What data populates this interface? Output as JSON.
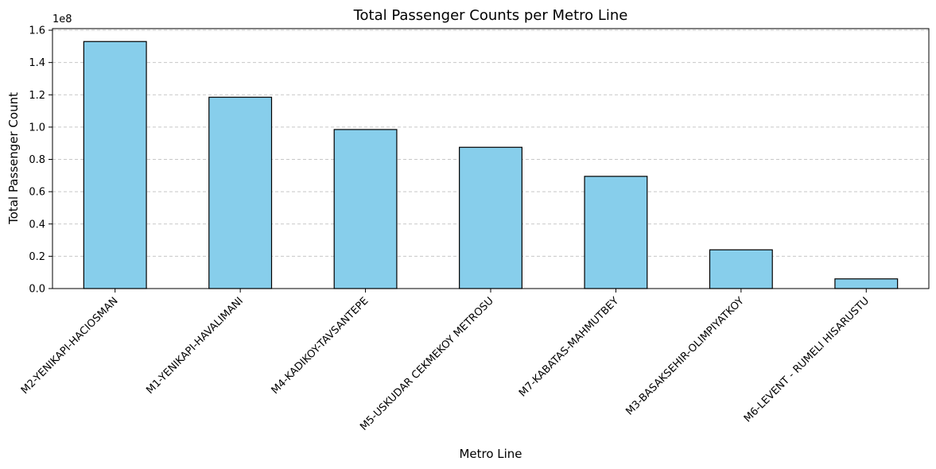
{
  "chart_data": {
    "type": "bar",
    "title": "Total Passenger Counts per Metro Line",
    "xlabel": "Metro Line",
    "ylabel": "Total Passenger Count",
    "y_offset_label": "1e8",
    "y_scale": 100000000,
    "ylim": [
      0,
      1.61
    ],
    "yticks": [
      0.0,
      0.2,
      0.4,
      0.6,
      0.8,
      1.0,
      1.2,
      1.4,
      1.6
    ],
    "ytick_labels": [
      "0.0",
      "0.2",
      "0.4",
      "0.6",
      "0.8",
      "1.0",
      "1.2",
      "1.4",
      "1.6"
    ],
    "categories": [
      "M2-YENIKAPI-HACIOSMAN",
      "M1-YENIKAPI-HAVALIMANI",
      "M4-KADIKOY-TAVSANTEPE",
      "M5-USKUDAR CEKMEKOY METROSU",
      "M7-KABATAS-MAHMUTBEY",
      "M3-BASAKSEHIR-OLIMPIYATKOY",
      "M6-LEVENT - RUMELI HISARUSTU"
    ],
    "values": [
      153000000,
      118500000,
      98500000,
      87500000,
      69500000,
      24000000,
      6000000
    ],
    "grid": {
      "y": true,
      "x": false,
      "style": "dashed"
    },
    "colors": {
      "bar_fill": "#87ceeb",
      "bar_edge": "#000000",
      "grid": "#c8c8c8"
    }
  }
}
